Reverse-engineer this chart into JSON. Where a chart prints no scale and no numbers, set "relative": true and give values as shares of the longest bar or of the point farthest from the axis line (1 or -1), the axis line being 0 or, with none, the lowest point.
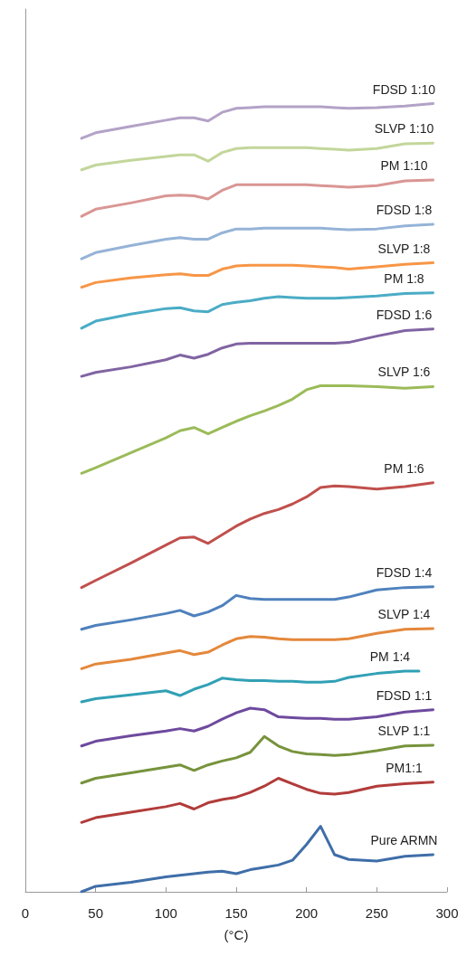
{
  "chart_data": {
    "type": "line",
    "relative": true,
    "xlabel": "(°C)",
    "xlim": [
      0,
      300
    ],
    "xticks": [
      0,
      50,
      100,
      150,
      200,
      250,
      300
    ],
    "grid": false,
    "legend": false,
    "marker": "none",
    "line_style": "solid",
    "x": [
      40,
      50,
      75,
      100,
      110,
      120,
      130,
      140,
      150,
      160,
      170,
      180,
      190,
      200,
      210,
      220,
      230,
      250,
      270,
      290
    ],
    "series": [
      {
        "name": "FDSD 1:10",
        "color": "#b3a2c7",
        "values": [
          0.956,
          0.963,
          0.971,
          0.979,
          0.982,
          0.982,
          0.978,
          0.989,
          0.994,
          0.995,
          0.996,
          0.996,
          0.996,
          0.996,
          0.996,
          0.995,
          0.994,
          0.995,
          0.997,
          1.0
        ]
      },
      {
        "name": "SLVP 1:10",
        "color": "#c3d69b",
        "values": [
          0.916,
          0.922,
          0.928,
          0.933,
          0.935,
          0.935,
          0.927,
          0.938,
          0.943,
          0.944,
          0.944,
          0.944,
          0.944,
          0.944,
          0.943,
          0.942,
          0.941,
          0.943,
          0.949,
          0.95
        ]
      },
      {
        "name": "PM 1:10",
        "color": "#d99694",
        "values": [
          0.857,
          0.866,
          0.874,
          0.883,
          0.884,
          0.883,
          0.879,
          0.89,
          0.897,
          0.897,
          0.897,
          0.897,
          0.897,
          0.897,
          0.896,
          0.895,
          0.894,
          0.896,
          0.902,
          0.903
        ]
      },
      {
        "name": "FDSD 1:8",
        "color": "#95b3d7",
        "values": [
          0.803,
          0.811,
          0.82,
          0.828,
          0.83,
          0.828,
          0.828,
          0.836,
          0.841,
          0.841,
          0.842,
          0.842,
          0.842,
          0.842,
          0.842,
          0.841,
          0.84,
          0.841,
          0.845,
          0.847
        ]
      },
      {
        "name": "SLVP 1:8",
        "color": "#f79646",
        "values": [
          0.767,
          0.773,
          0.779,
          0.783,
          0.784,
          0.782,
          0.782,
          0.79,
          0.794,
          0.795,
          0.795,
          0.795,
          0.795,
          0.794,
          0.793,
          0.792,
          0.79,
          0.793,
          0.796,
          0.798
        ]
      },
      {
        "name": "PM 1:8",
        "color": "#4bacc6",
        "values": [
          0.715,
          0.724,
          0.733,
          0.74,
          0.741,
          0.737,
          0.736,
          0.745,
          0.748,
          0.75,
          0.753,
          0.755,
          0.754,
          0.753,
          0.753,
          0.753,
          0.754,
          0.756,
          0.759,
          0.76
        ]
      },
      {
        "name": "FDSD 1:6",
        "color": "#8064a2",
        "values": [
          0.654,
          0.659,
          0.666,
          0.675,
          0.681,
          0.677,
          0.682,
          0.69,
          0.695,
          0.696,
          0.696,
          0.696,
          0.696,
          0.696,
          0.696,
          0.696,
          0.697,
          0.705,
          0.712,
          0.714
        ]
      },
      {
        "name": "SLVP 1:6",
        "color": "#9bbb59",
        "values": [
          0.531,
          0.538,
          0.557,
          0.576,
          0.585,
          0.589,
          0.581,
          0.589,
          0.597,
          0.604,
          0.61,
          0.617,
          0.625,
          0.637,
          0.642,
          0.642,
          0.642,
          0.641,
          0.639,
          0.641
        ]
      },
      {
        "name": "PM 1:6",
        "color": "#c0504d",
        "values": [
          0.386,
          0.395,
          0.417,
          0.44,
          0.449,
          0.45,
          0.442,
          0.453,
          0.464,
          0.473,
          0.48,
          0.485,
          0.492,
          0.501,
          0.513,
          0.515,
          0.514,
          0.511,
          0.514,
          0.519
        ]
      },
      {
        "name": "FDSD 1:4",
        "color": "#4f81bd",
        "values": [
          0.333,
          0.338,
          0.345,
          0.353,
          0.357,
          0.35,
          0.355,
          0.363,
          0.376,
          0.372,
          0.371,
          0.371,
          0.371,
          0.371,
          0.371,
          0.371,
          0.374,
          0.383,
          0.386,
          0.387
        ]
      },
      {
        "name": "SLVP 1:4",
        "color": "#e4883c",
        "values": [
          0.283,
          0.289,
          0.295,
          0.303,
          0.306,
          0.301,
          0.304,
          0.313,
          0.321,
          0.324,
          0.323,
          0.321,
          0.32,
          0.32,
          0.32,
          0.32,
          0.321,
          0.328,
          0.333,
          0.334
        ]
      },
      {
        "name": "PM 1:4",
        "color": "#31a0b5",
        "x": [
          40,
          50,
          75,
          100,
          110,
          120,
          130,
          140,
          150,
          160,
          170,
          180,
          190,
          200,
          210,
          220,
          230,
          250,
          270,
          280
        ],
        "values": [
          0.241,
          0.245,
          0.25,
          0.255,
          0.249,
          0.257,
          0.263,
          0.271,
          0.269,
          0.268,
          0.268,
          0.267,
          0.267,
          0.266,
          0.266,
          0.267,
          0.272,
          0.277,
          0.28,
          0.28
        ]
      },
      {
        "name": "FDSD 1:1",
        "color": "#6e4a9e",
        "values": [
          0.185,
          0.191,
          0.198,
          0.204,
          0.207,
          0.204,
          0.21,
          0.219,
          0.227,
          0.233,
          0.231,
          0.222,
          0.221,
          0.22,
          0.22,
          0.219,
          0.219,
          0.222,
          0.228,
          0.231
        ]
      },
      {
        "name": "SLVP 1:1",
        "color": "#77933c",
        "values": [
          0.138,
          0.144,
          0.151,
          0.158,
          0.161,
          0.154,
          0.161,
          0.166,
          0.17,
          0.177,
          0.197,
          0.185,
          0.178,
          0.175,
          0.174,
          0.173,
          0.174,
          0.179,
          0.185,
          0.186
        ]
      },
      {
        "name": "PM1:1",
        "color": "#b13c3a",
        "values": [
          0.088,
          0.094,
          0.101,
          0.108,
          0.112,
          0.105,
          0.113,
          0.117,
          0.12,
          0.126,
          0.134,
          0.144,
          0.137,
          0.13,
          0.125,
          0.124,
          0.126,
          0.134,
          0.137,
          0.139
        ]
      },
      {
        "name": "Pure ARMN",
        "color": "#3f6ea8",
        "values": [
          0.0,
          0.007,
          0.012,
          0.019,
          0.021,
          0.023,
          0.025,
          0.026,
          0.023,
          0.028,
          0.031,
          0.034,
          0.04,
          0.06,
          0.083,
          0.047,
          0.041,
          0.039,
          0.045,
          0.047
        ]
      }
    ]
  }
}
